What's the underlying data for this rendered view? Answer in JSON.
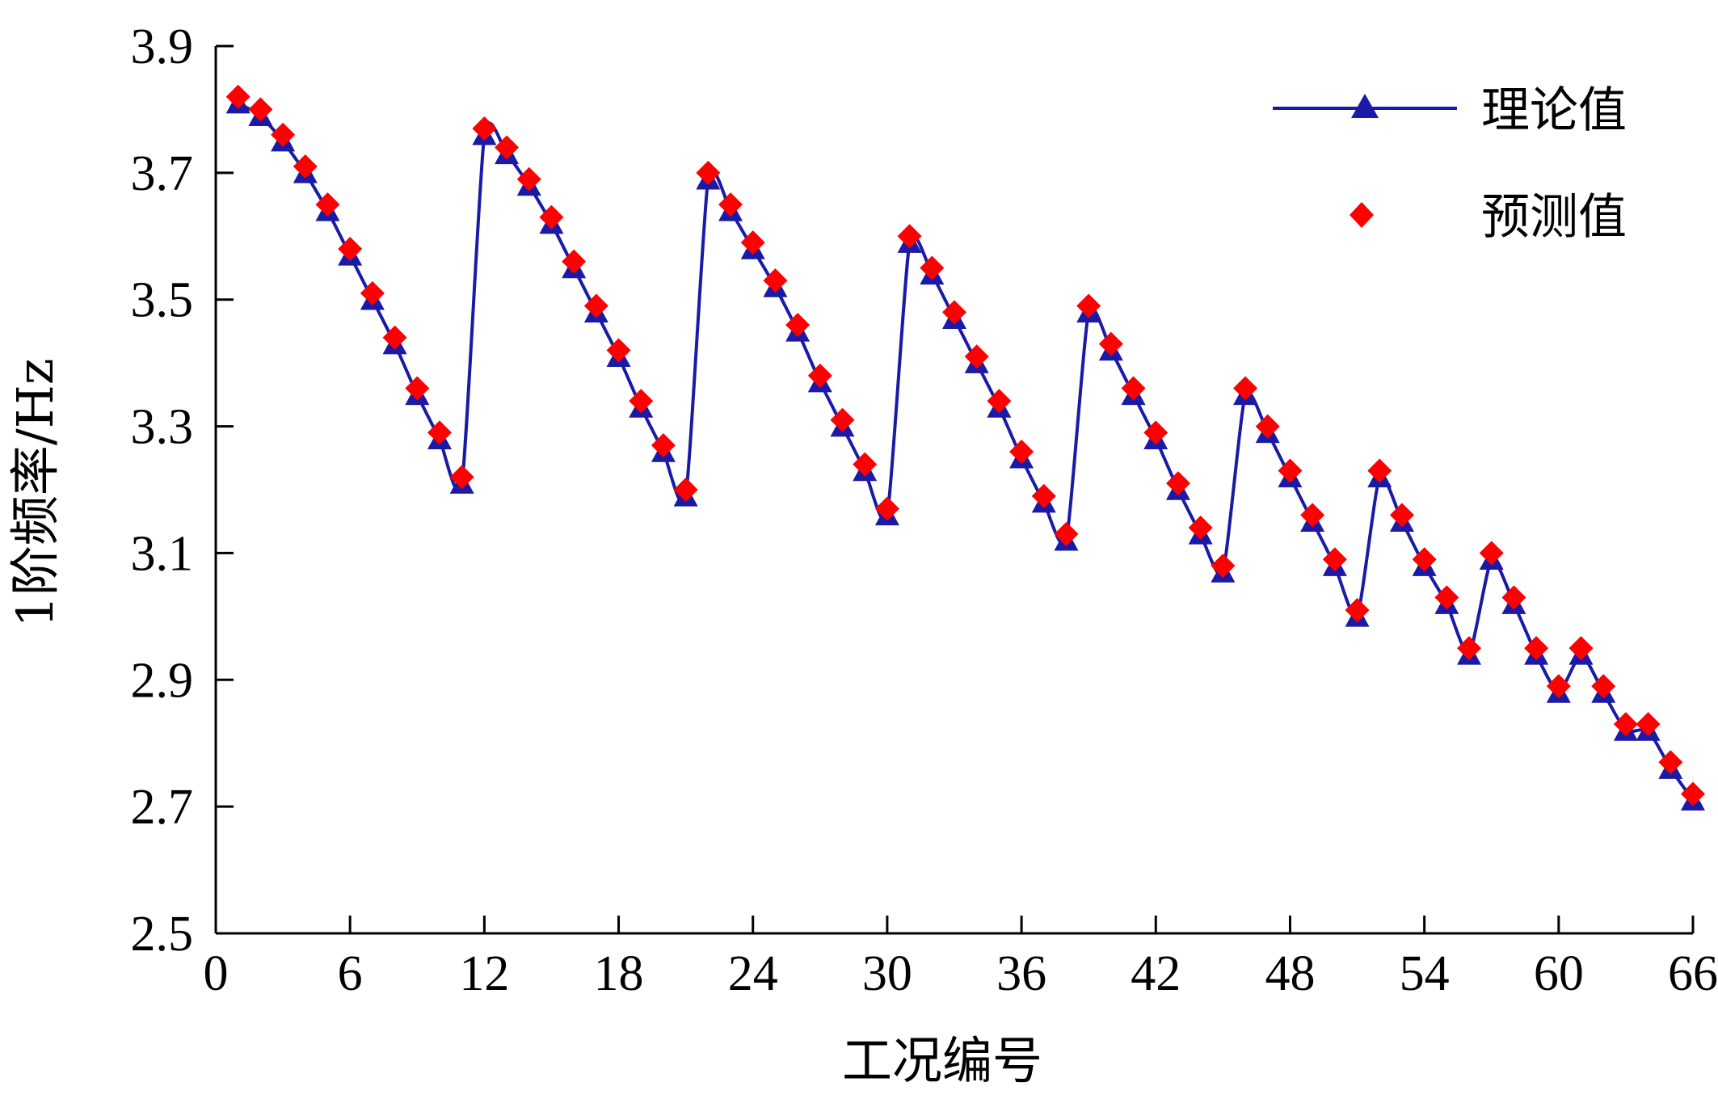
{
  "chart_data": {
    "type": "line",
    "xlabel": "工况编号",
    "ylabel": "1阶频率/Hz",
    "xlim": [
      0,
      66
    ],
    "ylim": [
      2.5,
      3.9
    ],
    "x_ticks": [
      "0",
      "6",
      "12",
      "18",
      "24",
      "30",
      "36",
      "42",
      "48",
      "54",
      "60",
      "66"
    ],
    "y_ticks": [
      "2.5",
      "2.7",
      "2.9",
      "3.1",
      "3.3",
      "3.5",
      "3.7",
      "3.9"
    ],
    "grid": false,
    "legend_position": "top-right",
    "series": [
      {
        "name": "理论值",
        "style": "line-triangle",
        "color": "#1a1aa6",
        "x": [
          1,
          2,
          3,
          4,
          5,
          6,
          7,
          8,
          9,
          10,
          11,
          12,
          13,
          14,
          15,
          16,
          17,
          18,
          19,
          20,
          21,
          22,
          23,
          24,
          25,
          26,
          27,
          28,
          29,
          30,
          31,
          32,
          33,
          34,
          35,
          36,
          37,
          38,
          39,
          40,
          41,
          42,
          43,
          44,
          45,
          46,
          47,
          48,
          49,
          50,
          51,
          52,
          53,
          54,
          55,
          56,
          57,
          58,
          59,
          60,
          61,
          62,
          63,
          64,
          65,
          66
        ],
        "values": [
          3.81,
          3.79,
          3.75,
          3.7,
          3.64,
          3.57,
          3.5,
          3.43,
          3.35,
          3.28,
          3.21,
          3.76,
          3.73,
          3.68,
          3.62,
          3.55,
          3.48,
          3.41,
          3.33,
          3.26,
          3.19,
          3.69,
          3.64,
          3.58,
          3.52,
          3.45,
          3.37,
          3.3,
          3.23,
          3.16,
          3.59,
          3.54,
          3.47,
          3.4,
          3.33,
          3.25,
          3.18,
          3.12,
          3.48,
          3.42,
          3.35,
          3.28,
          3.2,
          3.13,
          3.07,
          3.35,
          3.29,
          3.22,
          3.15,
          3.08,
          3.0,
          3.22,
          3.15,
          3.08,
          3.02,
          2.94,
          3.09,
          3.02,
          2.94,
          2.88,
          2.94,
          2.88,
          2.82,
          2.82,
          2.76,
          2.71
        ]
      },
      {
        "name": "预测值",
        "style": "diamond",
        "color": "#ff0000",
        "x": [
          1,
          2,
          3,
          4,
          5,
          6,
          7,
          8,
          9,
          10,
          11,
          12,
          13,
          14,
          15,
          16,
          17,
          18,
          19,
          20,
          21,
          22,
          23,
          24,
          25,
          26,
          27,
          28,
          29,
          30,
          31,
          32,
          33,
          34,
          35,
          36,
          37,
          38,
          39,
          40,
          41,
          42,
          43,
          44,
          45,
          46,
          47,
          48,
          49,
          50,
          51,
          52,
          53,
          54,
          55,
          56,
          57,
          58,
          59,
          60,
          61,
          62,
          63,
          64,
          65,
          66
        ],
        "values": [
          3.82,
          3.8,
          3.76,
          3.71,
          3.65,
          3.58,
          3.51,
          3.44,
          3.36,
          3.29,
          3.22,
          3.77,
          3.74,
          3.69,
          3.63,
          3.56,
          3.49,
          3.42,
          3.34,
          3.27,
          3.2,
          3.7,
          3.65,
          3.59,
          3.53,
          3.46,
          3.38,
          3.31,
          3.24,
          3.17,
          3.6,
          3.55,
          3.48,
          3.41,
          3.34,
          3.26,
          3.19,
          3.13,
          3.49,
          3.43,
          3.36,
          3.29,
          3.21,
          3.14,
          3.08,
          3.36,
          3.3,
          3.23,
          3.16,
          3.09,
          3.01,
          3.23,
          3.16,
          3.09,
          3.03,
          2.95,
          3.1,
          3.03,
          2.95,
          2.89,
          2.95,
          2.89,
          2.83,
          2.83,
          2.77,
          2.72
        ]
      }
    ]
  }
}
